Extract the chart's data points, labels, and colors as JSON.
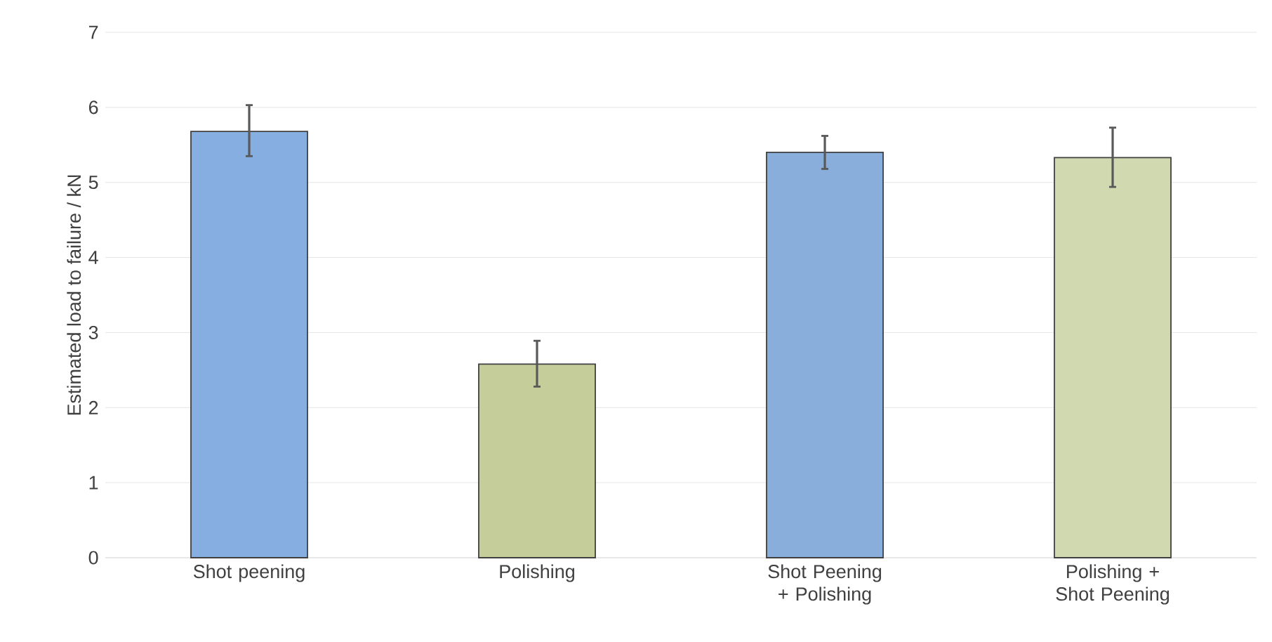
{
  "chart_data": {
    "type": "bar",
    "ylabel": "Estimated load to failure / kN",
    "categories": [
      "Shot peening",
      "Polishing",
      "Shot Peening + Polishing",
      "Polishing + Shot Peening"
    ],
    "values": [
      5.68,
      2.58,
      5.4,
      5.33
    ],
    "errors": [
      [
        5.35,
        6.03
      ],
      [
        2.28,
        2.89
      ],
      [
        5.18,
        5.62
      ],
      [
        4.94,
        5.73
      ]
    ],
    "colors": [
      "#86aee0",
      "#c5ce9a",
      "#8aaedc",
      "#d0d9b0"
    ],
    "ylim": [
      0,
      7
    ],
    "yticks": [
      0,
      1,
      2,
      3,
      4,
      5,
      6,
      7
    ],
    "grid": "y"
  }
}
